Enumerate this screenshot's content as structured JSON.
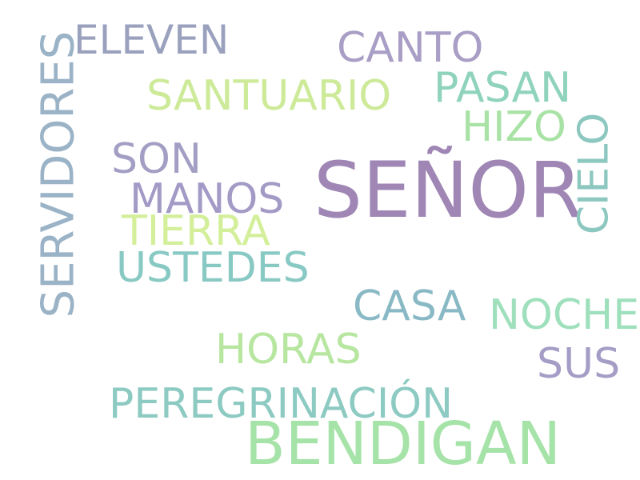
{
  "word_cloud": {
    "words": {
      "senor": {
        "text": "SEÑOR",
        "color": "#9f86b5"
      },
      "bendigan": {
        "text": "BENDIGAN",
        "color": "#a6e3a8"
      },
      "servidores": {
        "text": "SERVIDORES",
        "color": "#9bb3c7"
      },
      "eleven": {
        "text": "ELEVEN",
        "color": "#9aa1bd"
      },
      "canto": {
        "text": "CANTO",
        "color": "#a99ec5"
      },
      "santuario": {
        "text": "SANTUARIO",
        "color": "#ccea98"
      },
      "pasan": {
        "text": "PASAN",
        "color": "#8fd3bc"
      },
      "hizo": {
        "text": "HIZO",
        "color": "#a8e2a5"
      },
      "cielo": {
        "text": "CIELO",
        "color": "#8cc8c0"
      },
      "son": {
        "text": "SON",
        "color": "#a39fc4"
      },
      "manos": {
        "text": "MANOS",
        "color": "#a39ac6"
      },
      "tierra": {
        "text": "TIERRA",
        "color": "#d3ef99"
      },
      "ustedes": {
        "text": "USTEDES",
        "color": "#88c9c4"
      },
      "casa": {
        "text": "CASA",
        "color": "#8ab9c6"
      },
      "noche": {
        "text": "NOCHE",
        "color": "#9edfbc"
      },
      "horas": {
        "text": "HORAS",
        "color": "#b7e6a0"
      },
      "sus": {
        "text": "SUS",
        "color": "#a59dc6"
      },
      "peregrinacion": {
        "text": "PEREGRINACIÓN",
        "color": "#8ccac2"
      }
    }
  }
}
